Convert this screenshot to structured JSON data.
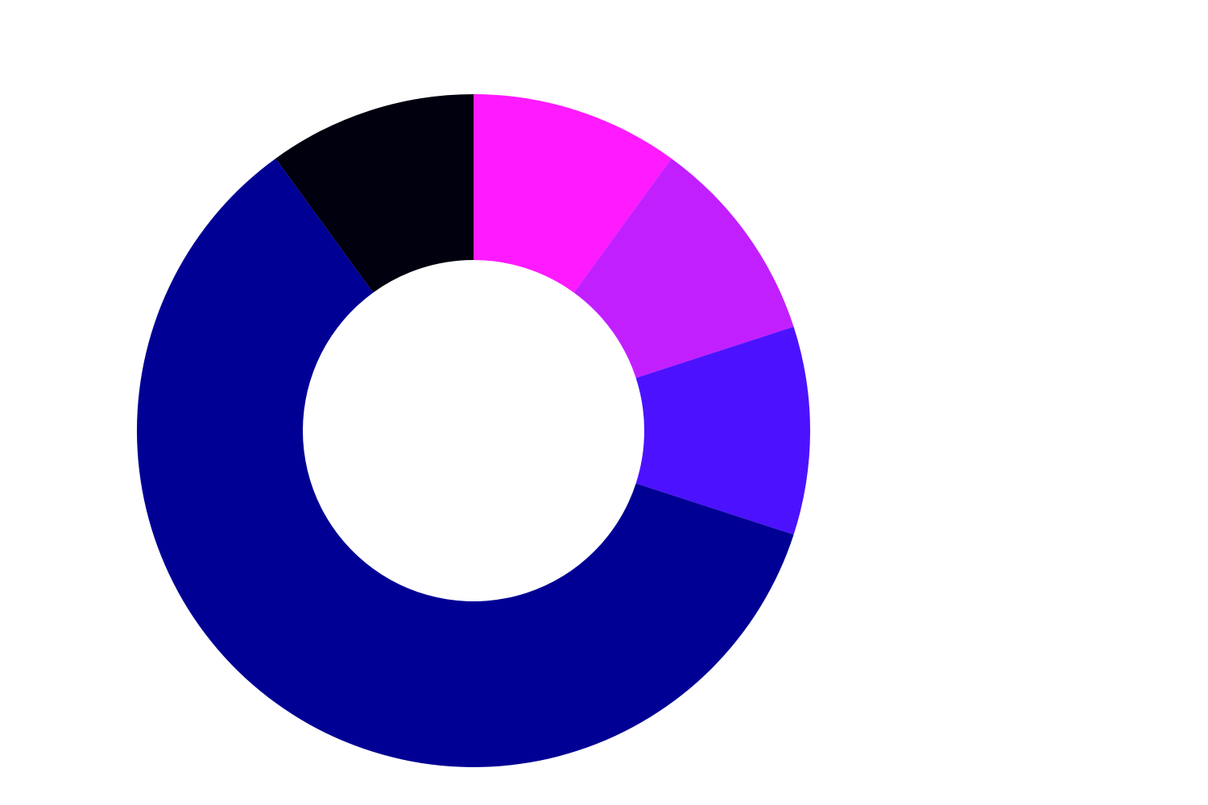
{
  "chart_data": {
    "type": "donut",
    "values": [
      10,
      10,
      10,
      60,
      10
    ],
    "colors": [
      "#ff1aff",
      "#c21fff",
      "#4c12ff",
      "#000094",
      "#00000f"
    ],
    "start_angle": 0,
    "direction": "clockwise"
  }
}
